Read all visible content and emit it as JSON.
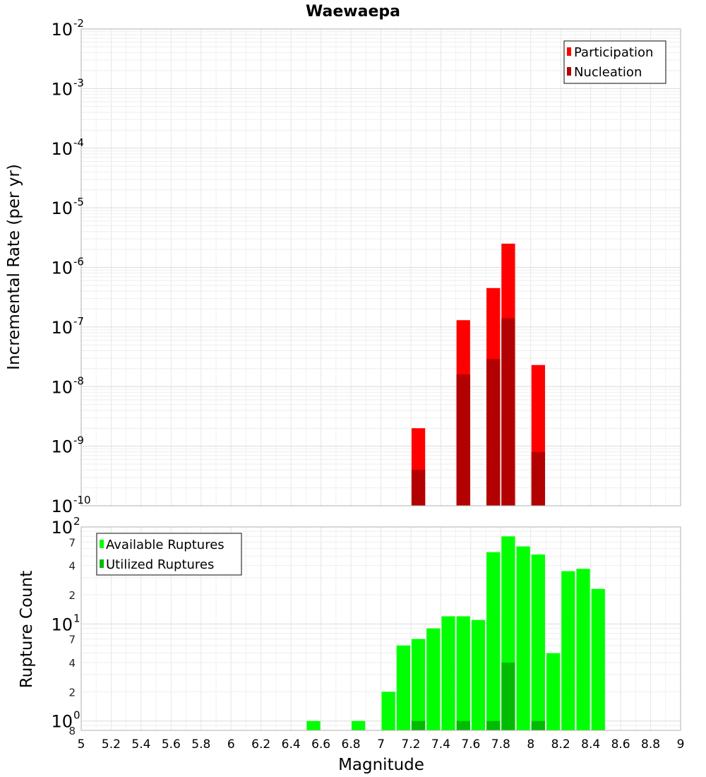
{
  "chart_data": [
    {
      "type": "bar",
      "title": "Waewaepa",
      "ylabel": "Incremental Rate (per yr)",
      "xlabel": "",
      "yscale": "log",
      "ylim": [
        1e-10,
        0.01
      ],
      "xlim": [
        5,
        9
      ],
      "bar_width": 0.1,
      "grid": true,
      "legend_position": "top-right",
      "series": [
        {
          "name": "Participation",
          "color": "#ff0000",
          "x": [
            7.25,
            7.55,
            7.75,
            7.85,
            8.05
          ],
          "values": [
            2e-09,
            1.3e-07,
            4.5e-07,
            2.5e-06,
            2.3e-08
          ]
        },
        {
          "name": "Nucleation",
          "color": "#b30000",
          "x": [
            7.25,
            7.55,
            7.75,
            7.85,
            8.05
          ],
          "values": [
            4e-10,
            1.6e-08,
            2.9e-08,
            1.4e-07,
            8e-10
          ]
        }
      ],
      "y_ticks": [
        {
          "base": "10",
          "exp": "-10"
        },
        {
          "base": "10",
          "exp": "-9"
        },
        {
          "base": "10",
          "exp": "-8"
        },
        {
          "base": "10",
          "exp": "-7"
        },
        {
          "base": "10",
          "exp": "-6"
        },
        {
          "base": "10",
          "exp": "-5"
        },
        {
          "base": "10",
          "exp": "-4"
        },
        {
          "base": "10",
          "exp": "-3"
        },
        {
          "base": "10",
          "exp": "-2"
        }
      ]
    },
    {
      "type": "bar",
      "title": "",
      "ylabel": "Rupture Count",
      "xlabel": "Magnitude",
      "yscale": "log",
      "ylim": [
        0.8,
        100
      ],
      "xlim": [
        5,
        9
      ],
      "bar_width": 0.1,
      "grid": true,
      "legend_position": "top-left",
      "series": [
        {
          "name": "Available Ruptures",
          "color": "#00ff00",
          "x": [
            6.55,
            6.85,
            7.05,
            7.15,
            7.25,
            7.35,
            7.45,
            7.55,
            7.65,
            7.75,
            7.85,
            7.95,
            8.05,
            8.15,
            8.25,
            8.35,
            8.45
          ],
          "values": [
            1,
            1,
            2,
            6,
            7,
            9,
            12,
            12,
            11,
            55,
            80,
            63,
            52,
            5,
            35,
            37,
            23
          ]
        },
        {
          "name": "Utilized Ruptures",
          "color": "#00bb00",
          "x": [
            7.25,
            7.55,
            7.75,
            7.85,
            8.05
          ],
          "values": [
            1,
            1,
            1,
            4,
            1
          ]
        }
      ],
      "x_ticks": [
        "5",
        "5.2",
        "5.4",
        "5.6",
        "5.8",
        "6",
        "6.2",
        "6.4",
        "6.6",
        "6.8",
        "7",
        "7.2",
        "7.4",
        "7.6",
        "7.8",
        "8",
        "8.2",
        "8.4",
        "8.6",
        "8.8",
        "9"
      ],
      "y_ticks": [
        {
          "base": "10",
          "exp": "0"
        },
        {
          "base": "10",
          "exp": "1"
        },
        {
          "base": "10",
          "exp": "2"
        }
      ],
      "y_minor_labels": [
        {
          "value": 0.8,
          "label": "8"
        },
        {
          "value": 2,
          "label": "2"
        },
        {
          "value": 4,
          "label": "4"
        },
        {
          "value": 7,
          "label": "7"
        },
        {
          "value": 20,
          "label": "2"
        },
        {
          "value": 40,
          "label": "4"
        },
        {
          "value": 70,
          "label": "7"
        }
      ]
    }
  ]
}
